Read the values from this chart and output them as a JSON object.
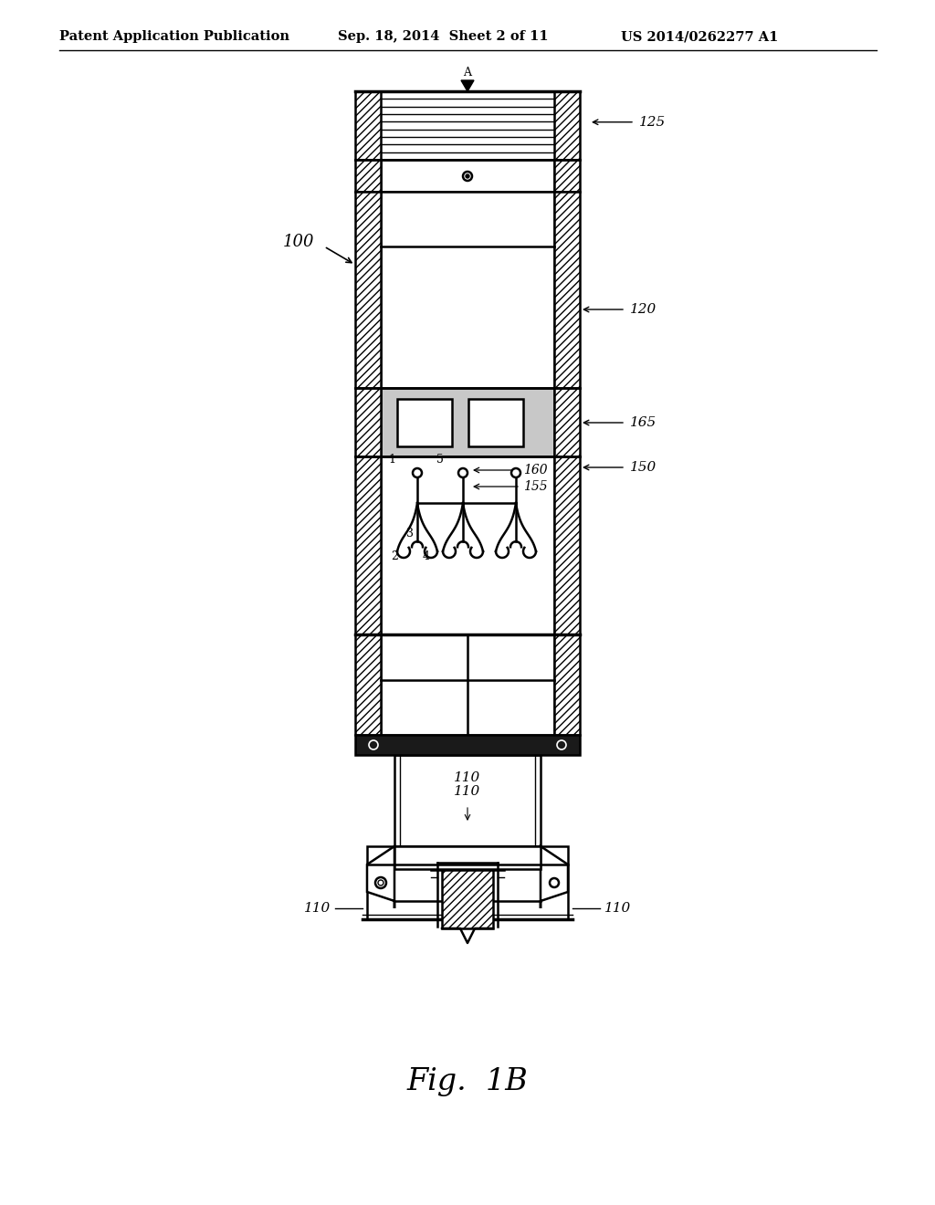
{
  "title": "Fig. 1B",
  "header_left": "Patent Application Publication",
  "header_center": "Sep. 18, 2014  Sheet 2 of 11",
  "header_right": "US 2014/0262277 A1",
  "bg_color": "#ffffff",
  "line_color": "#000000"
}
